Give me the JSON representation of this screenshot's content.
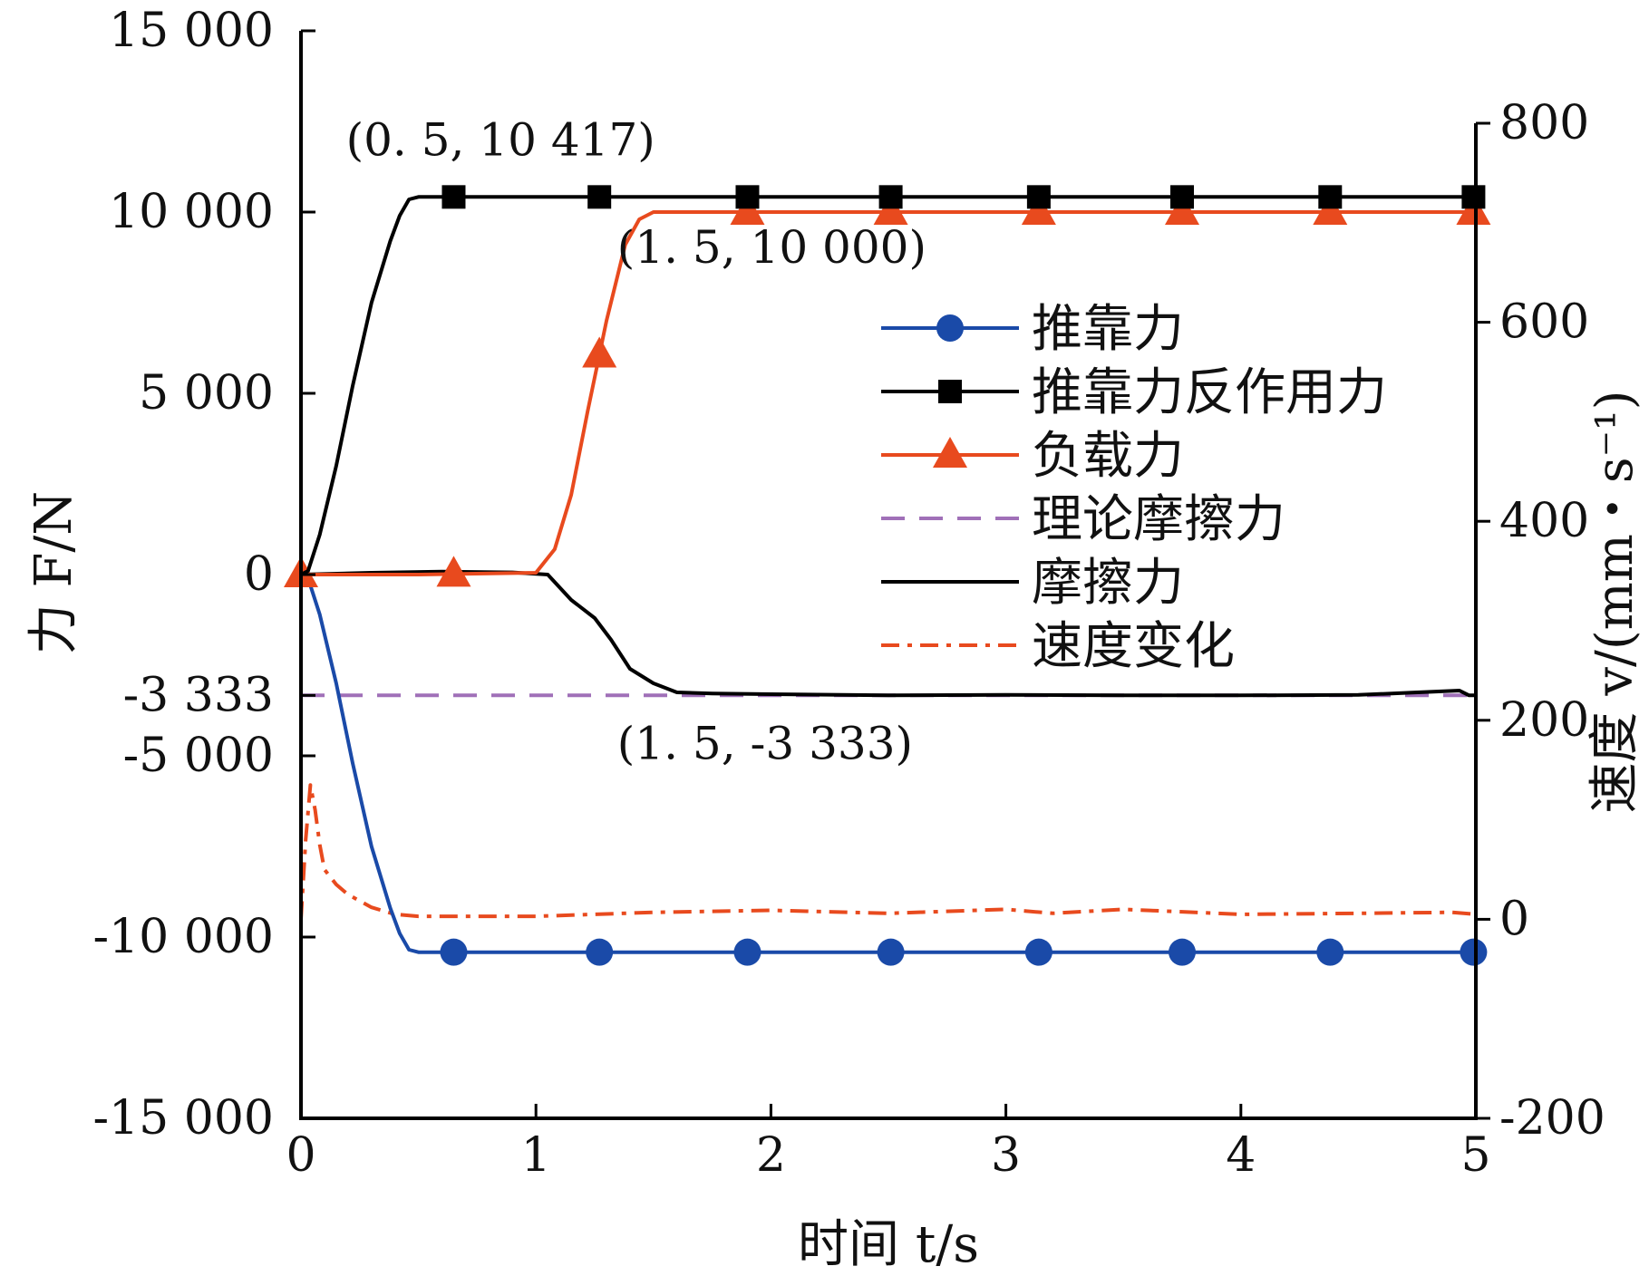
{
  "chart_data": {
    "type": "line",
    "xlabel": "时间 t/s",
    "ylabel_left": "力 F/N",
    "ylabel_right": "速度 v/(mm・s⁻¹)",
    "xlim": [
      0,
      5
    ],
    "ylim_left": [
      -15000,
      15000
    ],
    "ylim_right": [
      -200,
      800
    ],
    "xticks": [
      "0",
      "1",
      "2",
      "3",
      "4",
      "5"
    ],
    "yticks_left": [
      "15 000",
      "10 000",
      "5 000",
      "0",
      "-3 333",
      "-5 000",
      "-10 000",
      "-15 000"
    ],
    "yticks_right": [
      "800",
      "600",
      "400",
      "200",
      "0",
      "-200"
    ],
    "grid": false,
    "legend_position": "center-right",
    "series": [
      {
        "name": "推靠力",
        "axis": "left",
        "color": "#1a4aa8",
        "style": "solid",
        "marker": "circle",
        "x": [
          0,
          0.03,
          0.08,
          0.15,
          0.22,
          0.3,
          0.38,
          0.42,
          0.46,
          0.5,
          1,
          1.5,
          2,
          2.5,
          3,
          3.5,
          4,
          4.5,
          5
        ],
        "y": [
          0,
          -100,
          -1100,
          -3000,
          -5200,
          -7500,
          -9200,
          -9900,
          -10350,
          -10417,
          -10417,
          -10417,
          -10417,
          -10417,
          -10417,
          -10417,
          -10417,
          -10417,
          -10417
        ],
        "markers_x": [
          0.65,
          1.27,
          1.9,
          2.51,
          3.14,
          3.75,
          4.38,
          4.99
        ]
      },
      {
        "name": "推靠力反作用力",
        "axis": "left",
        "color": "#000000",
        "style": "solid",
        "marker": "square",
        "x": [
          0,
          0.03,
          0.08,
          0.15,
          0.22,
          0.3,
          0.38,
          0.42,
          0.46,
          0.5,
          1,
          1.5,
          2,
          2.5,
          3,
          3.5,
          4,
          4.5,
          5
        ],
        "y": [
          0,
          100,
          1100,
          3000,
          5200,
          7500,
          9200,
          9900,
          10350,
          10417,
          10417,
          10417,
          10417,
          10417,
          10417,
          10417,
          10417,
          10417,
          10417
        ],
        "markers_x": [
          0.65,
          1.27,
          1.9,
          2.51,
          3.14,
          3.75,
          4.38,
          4.99
        ]
      },
      {
        "name": "负载力",
        "axis": "left",
        "color": "#e84a1e",
        "style": "solid",
        "marker": "triangle",
        "x": [
          0,
          0.5,
          1.0,
          1.08,
          1.15,
          1.22,
          1.3,
          1.38,
          1.44,
          1.5,
          2,
          2.5,
          3,
          3.5,
          4,
          4.5,
          5
        ],
        "y": [
          0,
          0,
          50,
          700,
          2200,
          4500,
          7000,
          9100,
          9800,
          10000,
          10000,
          10000,
          10000,
          10000,
          10000,
          10000,
          10000
        ],
        "markers_x": [
          0,
          0.65,
          1.27,
          1.9,
          2.51,
          3.14,
          3.75,
          4.38,
          4.99
        ]
      },
      {
        "name": "理论摩擦力",
        "axis": "left",
        "color": "#a070b8",
        "style": "dashed",
        "x": [
          0,
          5
        ],
        "y": [
          -3333,
          -3333
        ]
      },
      {
        "name": "摩擦力",
        "axis": "left",
        "color": "#000000",
        "style": "solid",
        "x": [
          0,
          0.3,
          0.6,
          0.9,
          1.05,
          1.15,
          1.25,
          1.32,
          1.4,
          1.5,
          1.6,
          1.75,
          2,
          2.5,
          3,
          3.5,
          4,
          4.5,
          4.93,
          4.97,
          5
        ],
        "y": [
          0,
          50,
          80,
          60,
          0,
          -700,
          -1200,
          -1800,
          -2600,
          -3000,
          -3250,
          -3280,
          -3300,
          -3333,
          -3320,
          -3330,
          -3333,
          -3320,
          -3200,
          -3330,
          -3333
        ]
      },
      {
        "name": "速度变化",
        "axis": "right",
        "color": "#e84a1e",
        "style": "dashdot",
        "x": [
          0,
          0.02,
          0.04,
          0.06,
          0.08,
          0.1,
          0.15,
          0.2,
          0.3,
          0.4,
          0.5,
          1,
          1.5,
          2,
          2.5,
          3,
          3.2,
          3.5,
          4,
          4.5,
          4.9,
          5
        ],
        "y": [
          0,
          80,
          135,
          110,
          75,
          50,
          35,
          25,
          12,
          5,
          3,
          3,
          7,
          9,
          6,
          10,
          6,
          10,
          5,
          6,
          7,
          5
        ]
      }
    ],
    "annotations": [
      {
        "text": "(0. 5, 10 417)",
        "x": 0.5,
        "y": 10417
      },
      {
        "text": "(1. 5, 10 000)",
        "x": 1.5,
        "y": 10000
      },
      {
        "text": "(1. 5, -3 333)",
        "x": 1.5,
        "y": -3333
      }
    ]
  }
}
